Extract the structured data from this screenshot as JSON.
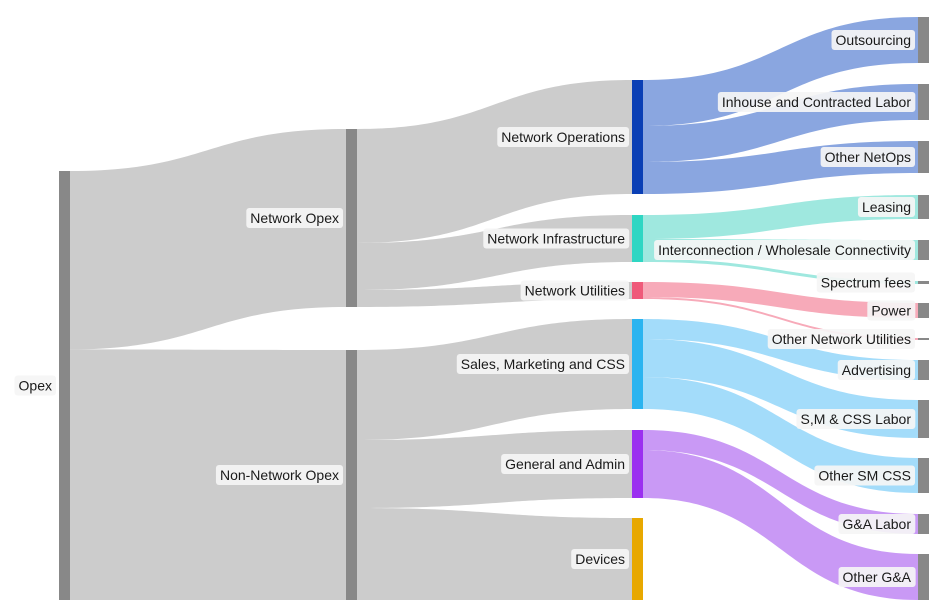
{
  "chart_data": {
    "type": "sankey",
    "nodes": [
      {
        "id": "opex",
        "label": "Opex",
        "color": "#888888"
      },
      {
        "id": "network_opex",
        "label": "Network Opex",
        "color": "#888888"
      },
      {
        "id": "non_network_opex",
        "label": "Non-Network Opex",
        "color": "#888888"
      },
      {
        "id": "network_operations",
        "label": "Network Operations",
        "color": "#0a3fb5"
      },
      {
        "id": "network_infrastructure",
        "label": "Network Infrastructure",
        "color": "#2fd6c3"
      },
      {
        "id": "network_utilities",
        "label": "Network Utilities",
        "color": "#ef5a7a"
      },
      {
        "id": "sales_marketing_css",
        "label": "Sales, Marketing and CSS",
        "color": "#2bb4f0"
      },
      {
        "id": "general_admin",
        "label": "General and Admin",
        "color": "#9b2ff0"
      },
      {
        "id": "devices",
        "label": "Devices",
        "color": "#e8a800"
      },
      {
        "id": "outsourcing",
        "label": "Outsourcing",
        "color": "#888888"
      },
      {
        "id": "inhouse_contracted_labor",
        "label": "Inhouse and Contracted Labor",
        "color": "#888888"
      },
      {
        "id": "other_netops",
        "label": "Other NetOps",
        "color": "#888888"
      },
      {
        "id": "leasing",
        "label": "Leasing",
        "color": "#888888"
      },
      {
        "id": "interconnection",
        "label": "Interconnection / Wholesale Connectivity",
        "color": "#888888"
      },
      {
        "id": "spectrum_fees",
        "label": "Spectrum fees",
        "color": "#888888"
      },
      {
        "id": "power",
        "label": "Power",
        "color": "#888888"
      },
      {
        "id": "other_network_utilities",
        "label": "Other Network Utilities",
        "color": "#888888"
      },
      {
        "id": "advertising",
        "label": "Advertising",
        "color": "#888888"
      },
      {
        "id": "smcss_labor",
        "label": "S,M & CSS Labor",
        "color": "#888888"
      },
      {
        "id": "other_sm_css",
        "label": "Other SM CSS",
        "color": "#888888"
      },
      {
        "id": "ga_labor",
        "label": "G&A Labor",
        "color": "#888888"
      },
      {
        "id": "other_ga",
        "label": "Other G&A",
        "color": "#888888"
      }
    ],
    "links": [
      {
        "source": "opex",
        "target": "network_opex",
        "value": 178,
        "color": "#cccccc"
      },
      {
        "source": "opex",
        "target": "non_network_opex",
        "value": 250,
        "color": "#cccccc"
      },
      {
        "source": "network_opex",
        "target": "network_operations",
        "value": 114,
        "color": "#cccccc"
      },
      {
        "source": "network_opex",
        "target": "network_infrastructure",
        "value": 47,
        "color": "#cccccc"
      },
      {
        "source": "network_opex",
        "target": "network_utilities",
        "value": 17,
        "color": "#cccccc"
      },
      {
        "source": "non_network_opex",
        "target": "sales_marketing_css",
        "value": 90,
        "color": "#cccccc"
      },
      {
        "source": "non_network_opex",
        "target": "general_admin",
        "value": 68,
        "color": "#cccccc"
      },
      {
        "source": "non_network_opex",
        "target": "devices",
        "value": 92,
        "color": "#cccccc"
      },
      {
        "source": "network_operations",
        "target": "outsourcing",
        "value": 46,
        "color": "#8aa6e0"
      },
      {
        "source": "network_operations",
        "target": "inhouse_contracted_labor",
        "value": 36,
        "color": "#8aa6e0"
      },
      {
        "source": "network_operations",
        "target": "other_netops",
        "value": 32,
        "color": "#8aa6e0"
      },
      {
        "source": "network_infrastructure",
        "target": "leasing",
        "value": 24,
        "color": "#9fe8df"
      },
      {
        "source": "network_infrastructure",
        "target": "interconnection",
        "value": 20,
        "color": "#9fe8df"
      },
      {
        "source": "network_infrastructure",
        "target": "spectrum_fees",
        "value": 3,
        "color": "#9fe8df"
      },
      {
        "source": "network_utilities",
        "target": "power",
        "value": 15,
        "color": "#f7aab9"
      },
      {
        "source": "network_utilities",
        "target": "other_network_utilities",
        "value": 2,
        "color": "#f7aab9"
      },
      {
        "source": "sales_marketing_css",
        "target": "advertising",
        "value": 20,
        "color": "#a3dcfa"
      },
      {
        "source": "sales_marketing_css",
        "target": "smcss_labor",
        "value": 38,
        "color": "#a3dcfa"
      },
      {
        "source": "sales_marketing_css",
        "target": "other_sm_css",
        "value": 32,
        "color": "#a3dcfa"
      },
      {
        "source": "general_admin",
        "target": "ga_labor",
        "value": 20,
        "color": "#c999f5"
      },
      {
        "source": "general_admin",
        "target": "other_ga",
        "value": 48,
        "color": "#c999f5"
      }
    ]
  }
}
